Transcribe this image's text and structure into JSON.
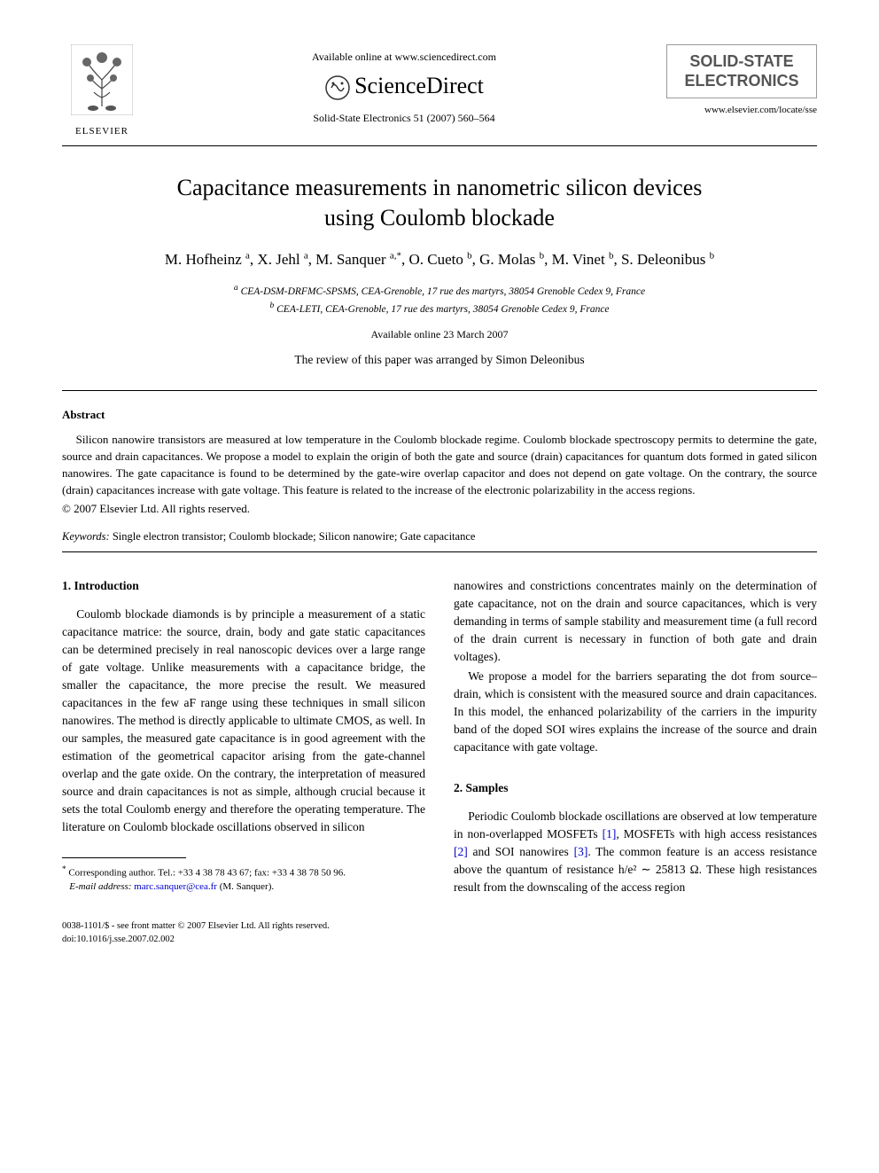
{
  "header": {
    "available_online": "Available online at www.sciencedirect.com",
    "sciencedirect": "ScienceDirect",
    "journal_ref": "Solid-State Electronics 51 (2007) 560–564",
    "elsevier": "ELSEVIER",
    "journal_box_line1": "SOLID-STATE",
    "journal_box_line2": "ELECTRONICS",
    "journal_url": "www.elsevier.com/locate/sse"
  },
  "title_line1": "Capacitance measurements in nanometric silicon devices",
  "title_line2": "using Coulomb blockade",
  "authors_html": "M. Hofheinz <sup>a</sup>, X. Jehl <sup>a</sup>, M. Sanquer <sup>a,*</sup>, O. Cueto <sup>b</sup>, G. Molas <sup>b</sup>, M. Vinet <sup>b</sup>, S. Deleonibus <sup>b</sup>",
  "affiliations": {
    "a": "CEA-DSM-DRFMC-SPSMS, CEA-Grenoble, 17 rue des martyrs, 38054 Grenoble Cedex 9, France",
    "b": "CEA-LETI, CEA-Grenoble, 17 rue des martyrs, 38054 Grenoble Cedex 9, France"
  },
  "available_date": "Available online 23 March 2007",
  "review_note": "The review of this paper was arranged by Simon Deleonibus",
  "abstract": {
    "heading": "Abstract",
    "text": "Silicon nanowire transistors are measured at low temperature in the Coulomb blockade regime. Coulomb blockade spectroscopy permits to determine the gate, source and drain capacitances. We propose a model to explain the origin of both the gate and source (drain) capacitances for quantum dots formed in gated silicon nanowires. The gate capacitance is found to be determined by the gate-wire overlap capacitor and does not depend on gate voltage. On the contrary, the source (drain) capacitances increase with gate voltage. This feature is related to the increase of the electronic polarizability in the access regions.",
    "copyright": "© 2007 Elsevier Ltd. All rights reserved."
  },
  "keywords": {
    "label": "Keywords:",
    "text": " Single electron transistor; Coulomb blockade; Silicon nanowire; Gate capacitance"
  },
  "sections": {
    "intro": {
      "heading": "1. Introduction",
      "p1": "Coulomb blockade diamonds is by principle a measurement of a static capacitance matrice: the source, drain, body and gate static capacitances can be determined precisely in real nanoscopic devices over a large range of gate voltage. Unlike measurements with a capacitance bridge, the smaller the capacitance, the more precise the result. We measured capacitances in the few aF range using these techniques in small silicon nanowires. The method is directly applicable to ultimate CMOS, as well. In our samples, the measured gate capacitance is in good agreement with the estimation of the geometrical capacitor arising from the gate-channel overlap and the gate oxide. On the contrary, the interpretation of measured source and drain capacitances is not as simple, although crucial because it sets the total Coulomb energy and therefore the operating temperature. The literature on Coulomb blockade oscillations observed in silicon",
      "p1_cont": "nanowires and constrictions concentrates mainly on the determination of gate capacitance, not on the drain and source capacitances, which is very demanding in terms of sample stability and measurement time (a full record of the drain current is necessary in function of both gate and drain voltages).",
      "p2": "We propose a model for the barriers separating the dot from source–drain, which is consistent with the measured source and drain capacitances. In this model, the enhanced polarizability of the carriers in the impurity band of the doped SOI wires explains the increase of the source and drain capacitance with gate voltage."
    },
    "samples": {
      "heading": "2. Samples",
      "p1_pre": "Periodic Coulomb blockade oscillations are observed at low temperature in non-overlapped MOSFETs ",
      "ref1": "[1]",
      "p1_mid1": ", MOSFETs with high access resistances ",
      "ref2": "[2]",
      "p1_mid2": " and SOI nanowires ",
      "ref3": "[3]",
      "p1_post": ". The common feature is an access resistance above the quantum of resistance h/e² ∼ 25813 Ω. These high resistances result from the downscaling of the access region"
    }
  },
  "footnote": {
    "corr": "Corresponding author. Tel.: +33 4 38 78 43 67; fax: +33 4 38 78 50 96.",
    "email_label": "E-mail address:",
    "email": "marc.sanquer@cea.fr",
    "email_suffix": " (M. Sanquer)."
  },
  "bottom": {
    "line1": "0038-1101/$ - see front matter © 2007 Elsevier Ltd. All rights reserved.",
    "line2": "doi:10.1016/j.sse.2007.02.002"
  },
  "colors": {
    "link": "#0000cc",
    "text": "#000000",
    "box_border": "#999999",
    "box_text": "#555555"
  }
}
